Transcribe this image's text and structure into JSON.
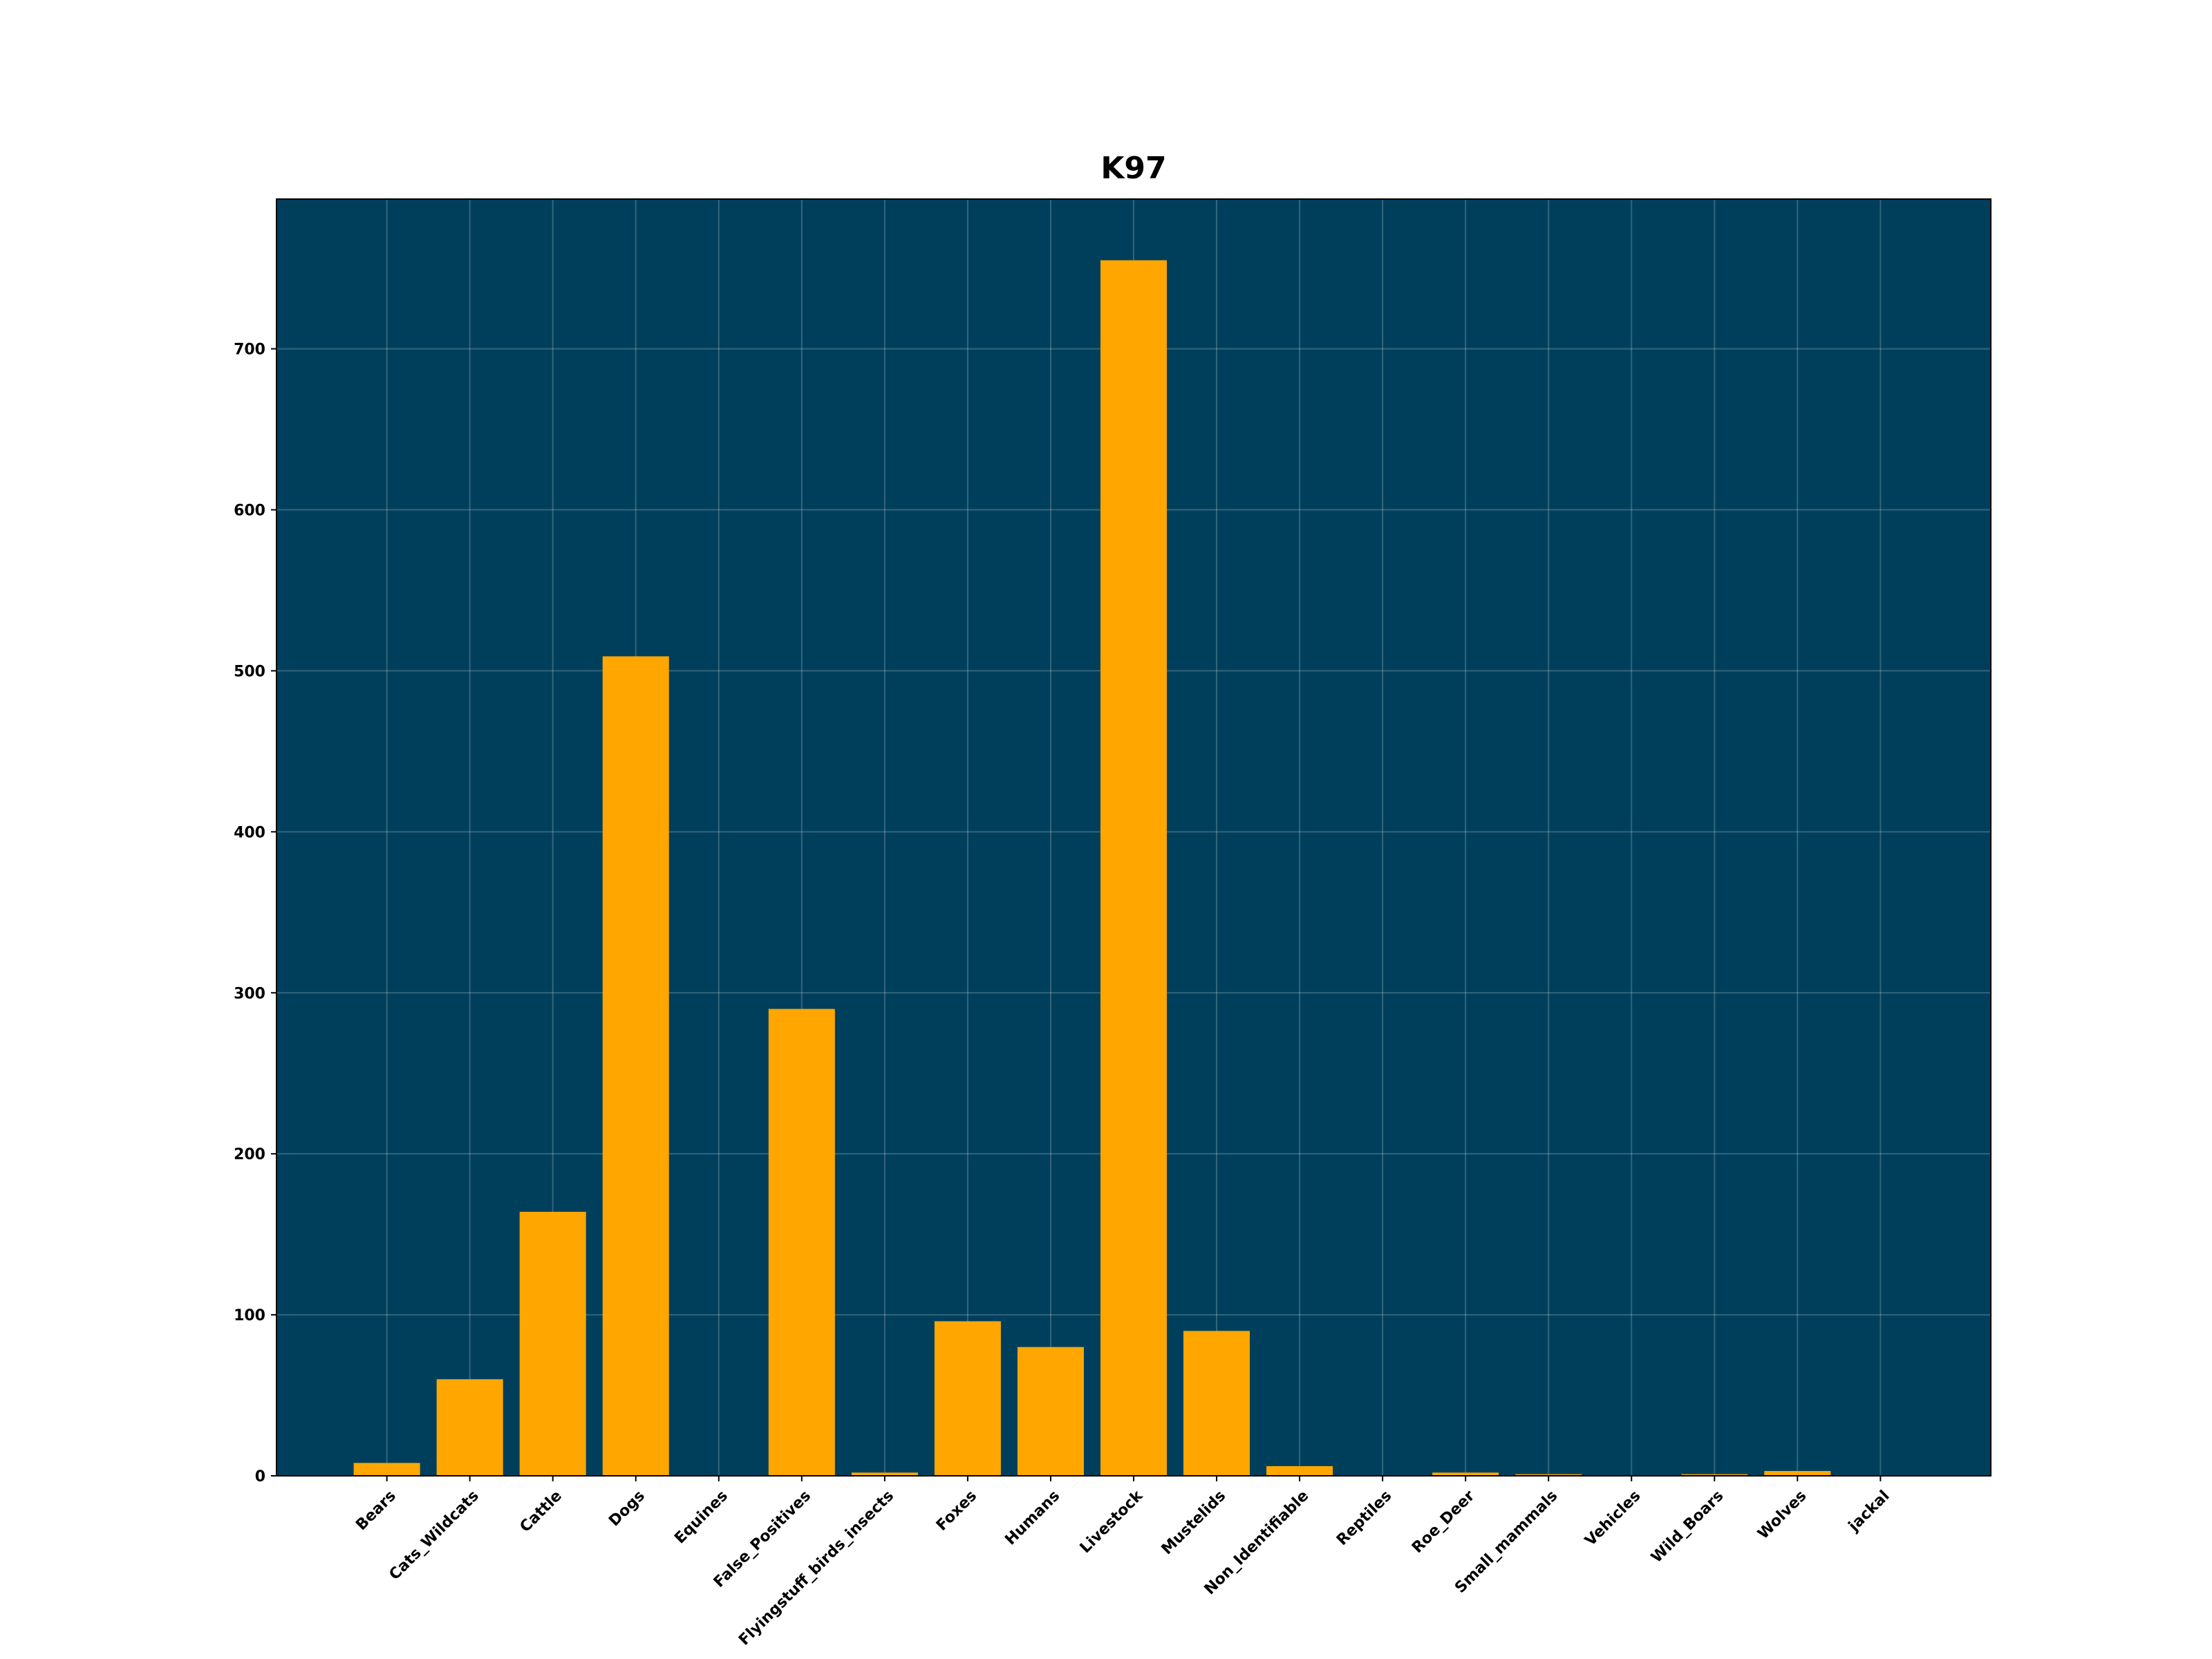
{
  "chart_data": {
    "type": "bar",
    "title": "K97",
    "categories": [
      "Bears",
      "Cats_Wildcats",
      "Cattle",
      "Dogs",
      "Equines",
      "False_Positives",
      "Flyingstuff_birds_insects",
      "Foxes",
      "Humans",
      "Livestock",
      "Mustelids",
      "Non_Identifiable",
      "Reptiles",
      "Roe_Deer",
      "Small_mammals",
      "Vehicles",
      "Wild_Boars",
      "Wolves",
      "jackal"
    ],
    "values": [
      8,
      60,
      164,
      509,
      0,
      290,
      2,
      96,
      80,
      755,
      90,
      6,
      0,
      2,
      1,
      0,
      1,
      3,
      0
    ],
    "color": "#ffa600",
    "background": "#003f5c",
    "ylim": [
      0,
      793
    ],
    "yticks": [
      0,
      100,
      200,
      300,
      400,
      500,
      600,
      700
    ],
    "grid": true
  }
}
